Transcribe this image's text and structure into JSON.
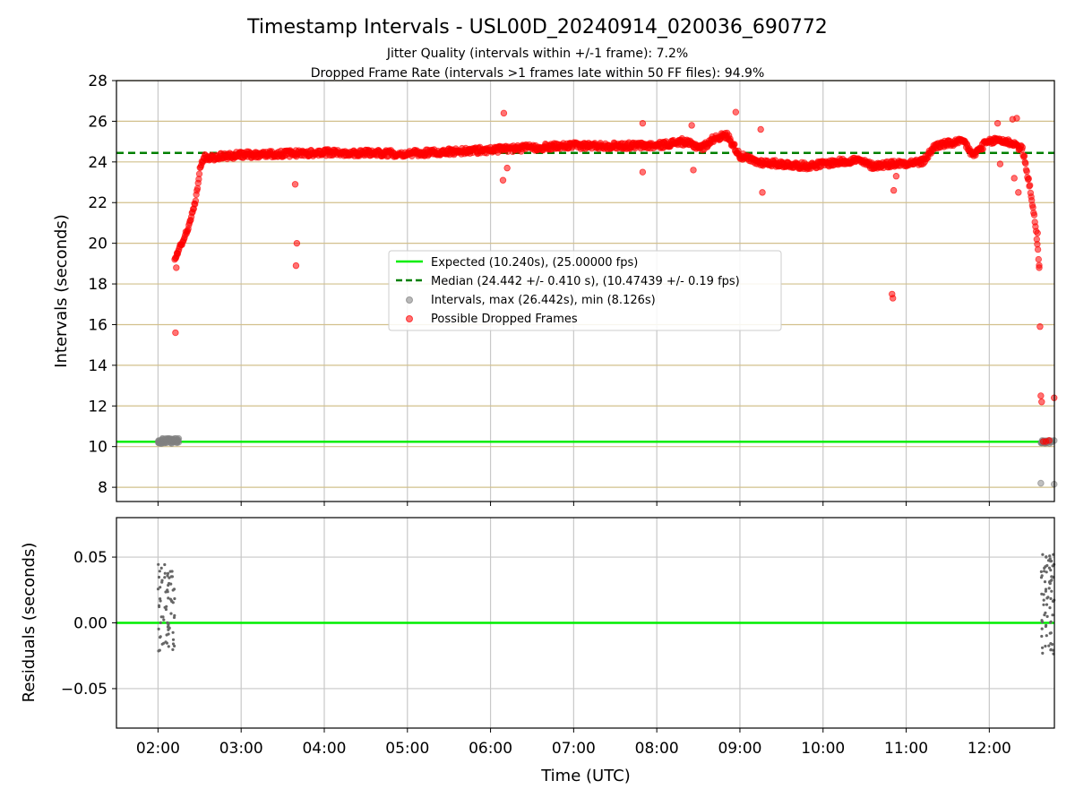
{
  "title": "Timestamp Intervals - USL00D_20240914_020036_690772",
  "subtitle_1": "Jitter Quality (intervals within +/-1 frame): 7.2%",
  "subtitle_2": "Dropped Frame Rate (intervals >1 frames late within 50 FF files): 94.9%",
  "colors": {
    "expected": "#00ee00",
    "median": "#008000",
    "intervals": "#808080",
    "dropped": "#ff0000",
    "hgrid_top": "#d2c08c",
    "grid": "#c8c8c8"
  },
  "chart_data": [
    {
      "type": "scatter",
      "panel": "top",
      "ylabel": "Intervals (seconds)",
      "ylim": [
        7.3,
        28
      ],
      "y_ticks": [
        8,
        10,
        12,
        14,
        16,
        18,
        20,
        22,
        24,
        26,
        28
      ],
      "xlim_hours": [
        1.5,
        12.783
      ],
      "legend_position": "center",
      "legend": [
        {
          "label": "Expected (10.240s), (25.00000 fps)",
          "style": "solid-line",
          "color": "#00ee00"
        },
        {
          "label": "Median (24.442 +/- 0.410 s), (10.47439 +/- 0.19 fps)",
          "style": "dashed-line",
          "color": "#008000"
        },
        {
          "label": "Intervals, max (26.442s), min (8.126s)",
          "style": "marker",
          "color": "#808080"
        },
        {
          "label": "Possible Dropped Frames",
          "style": "marker",
          "color": "#ff0000"
        }
      ],
      "expected_value": 10.24,
      "median_value": 24.442,
      "trend_series": {
        "name": "Possible Dropped Frames",
        "knots": [
          [
            2.2,
            19.2
          ],
          [
            2.35,
            20.6
          ],
          [
            2.45,
            22.0
          ],
          [
            2.5,
            23.6
          ],
          [
            2.55,
            24.2
          ],
          [
            3.0,
            24.35
          ],
          [
            3.5,
            24.4
          ],
          [
            4.0,
            24.45
          ],
          [
            4.5,
            24.45
          ],
          [
            5.0,
            24.4
          ],
          [
            5.5,
            24.5
          ],
          [
            6.0,
            24.6
          ],
          [
            6.5,
            24.7
          ],
          [
            7.0,
            24.8
          ],
          [
            7.5,
            24.8
          ],
          [
            8.0,
            24.8
          ],
          [
            8.3,
            25.0
          ],
          [
            8.55,
            24.7
          ],
          [
            8.7,
            25.2
          ],
          [
            8.85,
            25.3
          ],
          [
            9.0,
            24.3
          ],
          [
            9.2,
            24.0
          ],
          [
            9.5,
            23.9
          ],
          [
            9.8,
            23.8
          ],
          [
            10.0,
            23.9
          ],
          [
            10.4,
            24.1
          ],
          [
            10.6,
            23.8
          ],
          [
            10.8,
            23.9
          ],
          [
            11.2,
            24.0
          ],
          [
            11.35,
            24.8
          ],
          [
            11.5,
            24.9
          ],
          [
            11.7,
            25.0
          ],
          [
            11.8,
            24.3
          ],
          [
            11.95,
            24.9
          ],
          [
            12.1,
            25.1
          ],
          [
            12.3,
            24.9
          ],
          [
            12.4,
            24.6
          ],
          [
            12.5,
            22.5
          ],
          [
            12.55,
            21.0
          ],
          [
            12.6,
            19.0
          ]
        ]
      },
      "red_outliers": [
        [
          2.21,
          15.6
        ],
        [
          2.22,
          18.8
        ],
        [
          2.23,
          19.5
        ],
        [
          3.65,
          22.9
        ],
        [
          3.67,
          20.0
        ],
        [
          3.66,
          18.9
        ],
        [
          6.16,
          26.4
        ],
        [
          6.15,
          23.1
        ],
        [
          6.2,
          23.7
        ],
        [
          7.83,
          25.9
        ],
        [
          7.83,
          23.5
        ],
        [
          8.42,
          25.8
        ],
        [
          8.44,
          23.6
        ],
        [
          8.95,
          26.45
        ],
        [
          9.25,
          25.6
        ],
        [
          9.27,
          22.5
        ],
        [
          10.83,
          17.5
        ],
        [
          10.84,
          17.3
        ],
        [
          10.85,
          22.6
        ],
        [
          10.88,
          23.3
        ],
        [
          12.1,
          25.9
        ],
        [
          12.13,
          23.9
        ],
        [
          12.28,
          26.1
        ],
        [
          12.33,
          26.15
        ],
        [
          12.3,
          23.2
        ],
        [
          12.35,
          22.5
        ],
        [
          12.58,
          20.5
        ],
        [
          12.6,
          18.8
        ],
        [
          12.61,
          15.9
        ],
        [
          12.62,
          12.5
        ],
        [
          12.63,
          12.2
        ],
        [
          12.78,
          12.4
        ],
        [
          12.65,
          10.25
        ],
        [
          12.68,
          10.25
        ],
        [
          12.72,
          10.3
        ]
      ],
      "gray_cluster_start": {
        "x_range": [
          2.0,
          2.25
        ],
        "y_range": [
          10.15,
          10.4
        ]
      },
      "gray_cluster_end": {
        "x_range": [
          12.62,
          12.75
        ],
        "y_range": [
          10.15,
          10.3
        ]
      },
      "gray_outliers": [
        [
          12.62,
          8.2
        ],
        [
          12.78,
          8.15
        ],
        [
          2.22,
          10.4
        ],
        [
          12.78,
          10.3
        ]
      ]
    },
    {
      "type": "scatter",
      "panel": "bottom",
      "ylabel": "Residuals (seconds)",
      "xlabel": "Time (UTC)",
      "ylim": [
        -0.08,
        0.08
      ],
      "y_ticks": [
        -0.05,
        0.0,
        0.05
      ],
      "y_tick_labels": [
        "−0.05",
        "0.00",
        "0.05"
      ],
      "xlim_hours": [
        1.5,
        12.783
      ],
      "x_ticks": [
        2,
        3,
        4,
        5,
        6,
        7,
        8,
        9,
        10,
        11,
        12
      ],
      "x_tick_labels": [
        "02:00",
        "03:00",
        "04:00",
        "05:00",
        "06:00",
        "07:00",
        "08:00",
        "09:00",
        "10:00",
        "11:00",
        "12:00"
      ],
      "zero_line": 0.0,
      "residual_cluster_start": {
        "x_range": [
          2.0,
          2.2
        ],
        "y_range": [
          -0.026,
          0.045
        ]
      },
      "residual_cluster_end": {
        "x_range": [
          12.62,
          12.78
        ],
        "y_range": [
          -0.026,
          0.052
        ]
      }
    }
  ]
}
